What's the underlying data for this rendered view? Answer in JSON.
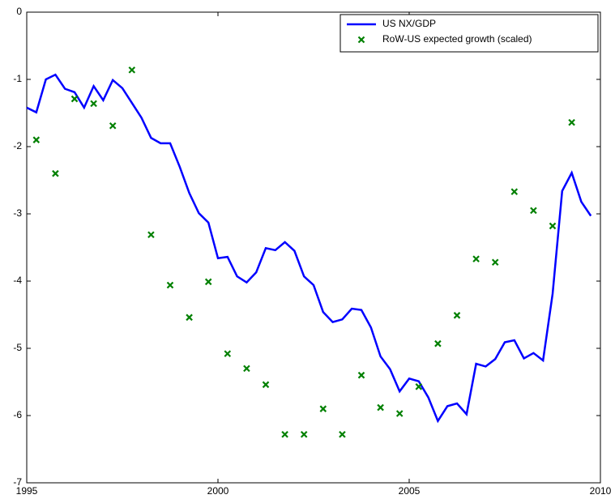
{
  "chart_data": {
    "type": "line",
    "xlim": [
      1995,
      2010
    ],
    "ylim": [
      -7,
      0
    ],
    "xticks": [
      1995,
      2000,
      2005,
      2010
    ],
    "yticks": [
      -7,
      -6,
      -5,
      -4,
      -3,
      -2,
      -1,
      0
    ],
    "grid": false,
    "legend": "upper right",
    "series": [
      {
        "name": "US NX/GDP",
        "type": "line",
        "color": "#0000ff",
        "x": [
          1995,
          1995.25,
          1995.5,
          1995.75,
          1996,
          1996.25,
          1996.5,
          1996.75,
          1997,
          1997.25,
          1997.5,
          1997.75,
          1998,
          1998.25,
          1998.5,
          1998.75,
          1999,
          1999.25,
          1999.5,
          1999.75,
          2000,
          2000.25,
          2000.5,
          2000.75,
          2001,
          2001.25,
          2001.5,
          2001.75,
          2002,
          2002.25,
          2002.5,
          2002.75,
          2003,
          2003.25,
          2003.5,
          2003.75,
          2004,
          2004.25,
          2004.5,
          2004.75,
          2005,
          2005.25,
          2005.5,
          2005.75,
          2006,
          2006.25,
          2006.5,
          2006.75,
          2007,
          2007.25,
          2007.5,
          2007.75,
          2008,
          2008.25,
          2008.5,
          2008.75,
          2009,
          2009.25,
          2009.5,
          2009.75
        ],
        "values": [
          -1.42,
          -1.49,
          -1.0,
          -0.93,
          -1.14,
          -1.19,
          -1.42,
          -1.1,
          -1.31,
          -1.01,
          -1.13,
          -1.35,
          -1.57,
          -1.87,
          -1.95,
          -1.95,
          -2.3,
          -2.69,
          -2.99,
          -3.13,
          -3.66,
          -3.64,
          -3.93,
          -4.02,
          -3.87,
          -3.51,
          -3.54,
          -3.42,
          -3.55,
          -3.93,
          -4.06,
          -4.46,
          -4.61,
          -4.57,
          -4.41,
          -4.43,
          -4.69,
          -5.12,
          -5.31,
          -5.64,
          -5.45,
          -5.49,
          -5.73,
          -6.08,
          -5.86,
          -5.82,
          -5.98,
          -5.23,
          -5.27,
          -5.16,
          -4.91,
          -4.88,
          -5.15,
          -5.07,
          -5.18,
          -4.19,
          -2.66,
          -2.39,
          -2.82,
          -3.03
        ]
      },
      {
        "name": "RoW-US expected growth (scaled)",
        "type": "scatter",
        "color": "#008000",
        "x": [
          1995.25,
          1995.75,
          1996.25,
          1996.75,
          1997.25,
          1997.75,
          1998.25,
          1998.75,
          1999.25,
          1999.75,
          2000.25,
          2000.75,
          2001.25,
          2001.75,
          2002.25,
          2002.75,
          2003.25,
          2003.75,
          2004.25,
          2004.75,
          2005.25,
          2005.75,
          2006.25,
          2006.75,
          2007.25,
          2007.75,
          2008.25,
          2008.75,
          2009.25
        ],
        "values": [
          -1.9,
          -2.4,
          -1.29,
          -1.36,
          -1.69,
          -0.86,
          -3.31,
          -4.06,
          -4.54,
          -4.01,
          -5.08,
          -5.3,
          -5.54,
          -6.28,
          -6.28,
          -5.9,
          -6.28,
          -5.4,
          -5.88,
          -5.97,
          -5.57,
          -4.93,
          -4.51,
          -3.67,
          -3.72,
          -2.67,
          -2.95,
          -3.18,
          -1.64
        ]
      }
    ]
  }
}
